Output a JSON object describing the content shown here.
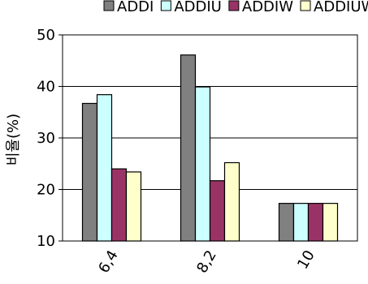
{
  "chart_data": {
    "type": "bar",
    "categories": [
      "6,4",
      "8,2",
      "10"
    ],
    "series": [
      {
        "name": "ADDI",
        "values": [
          36.7,
          46.1,
          17.3
        ],
        "color": "#808080"
      },
      {
        "name": "ADDIU",
        "values": [
          38.4,
          39.9,
          17.3
        ],
        "color": "#ccffff"
      },
      {
        "name": "ADDIW",
        "values": [
          24.0,
          21.7,
          17.3
        ],
        "color": "#993366"
      },
      {
        "name": "ADDIUW",
        "values": [
          23.4,
          25.2,
          17.3
        ],
        "color": "#ffffcc"
      }
    ],
    "ylabel": "비율(%)",
    "xlabel": "",
    "ylim": [
      10,
      50
    ],
    "yticks": [
      10,
      20,
      30,
      40,
      50
    ],
    "grid": true,
    "legend_position": "top"
  }
}
